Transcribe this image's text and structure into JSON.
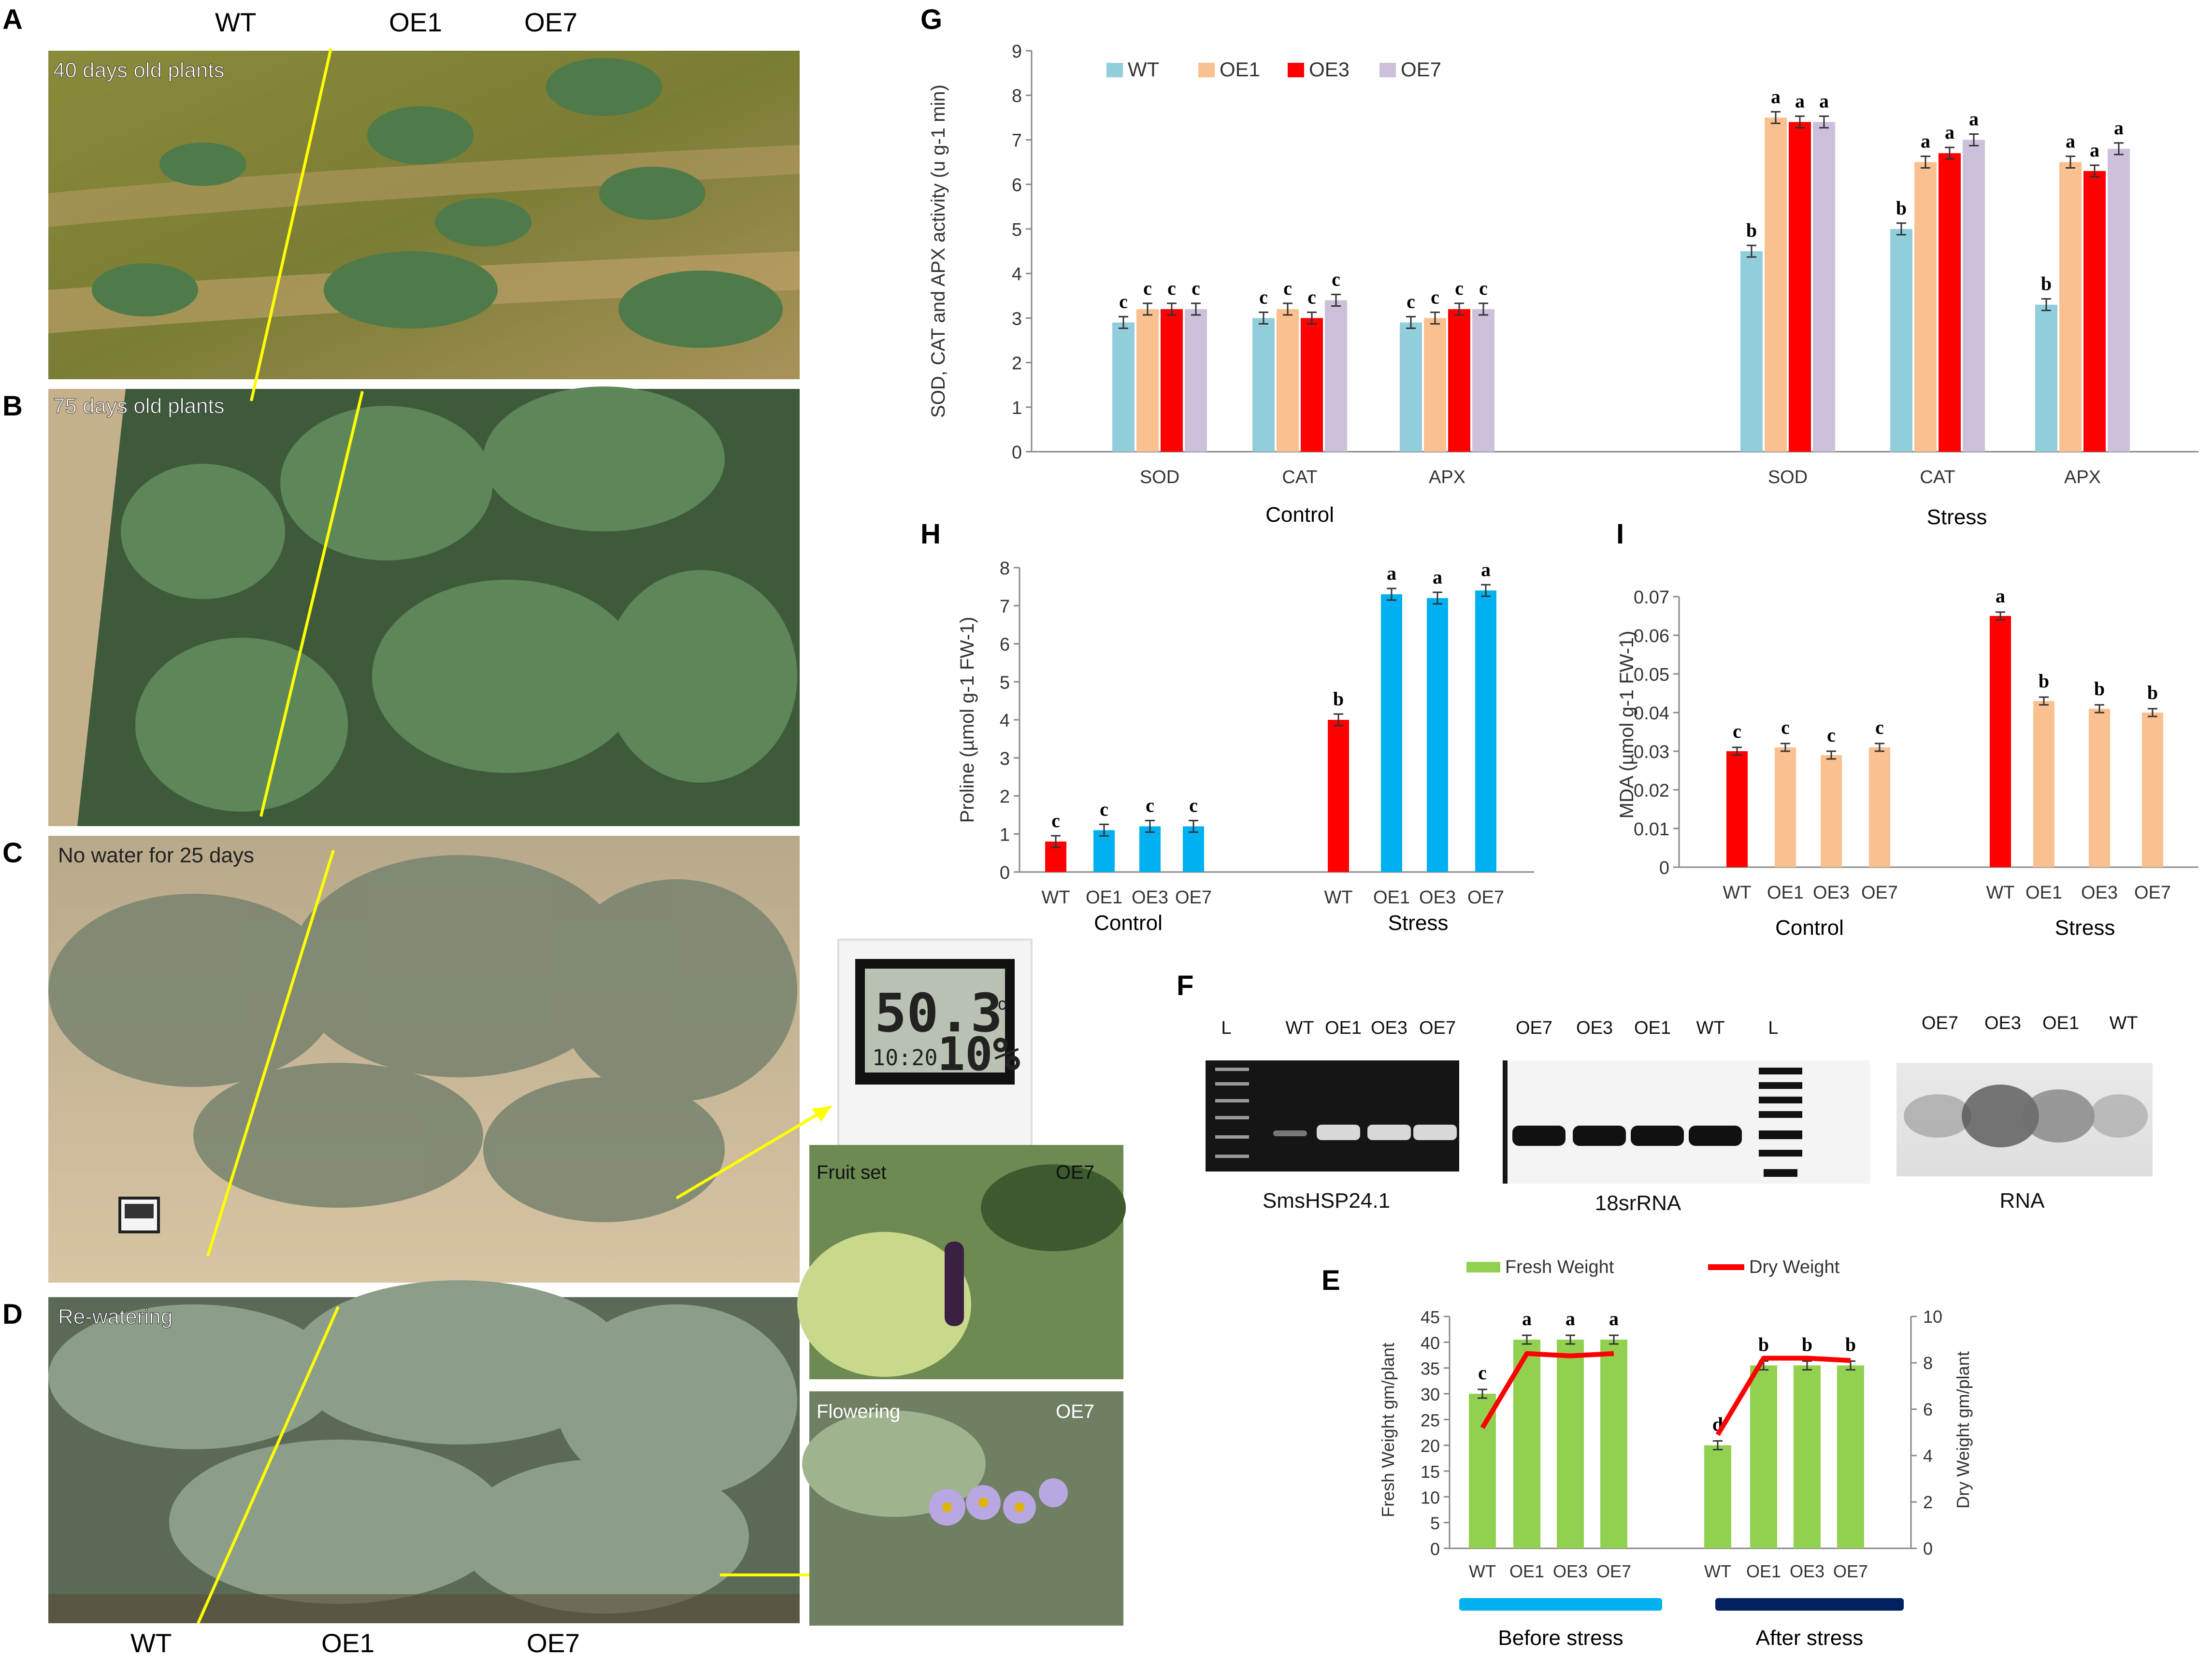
{
  "figure": {
    "panels": {
      "A": {
        "letter": "A",
        "caption": "40 days old plants"
      },
      "B": {
        "letter": "B",
        "caption": "75 days old plants"
      },
      "C": {
        "letter": "C",
        "caption": "No water for 25 days"
      },
      "D": {
        "letter": "D",
        "caption": "Re-watering"
      },
      "fruit": {
        "caption": "Fruit set",
        "tag": "OE7"
      },
      "flower": {
        "caption": "Flowering",
        "tag": "OE7"
      },
      "thermo": {
        "temp": "50.3",
        "unit": "c",
        "humidity": "10%",
        "time": "10:20"
      },
      "top_labels": [
        "WT",
        "OE1",
        "OE7"
      ],
      "bottom_labels": [
        "WT",
        "OE1",
        "OE7"
      ],
      "G": {
        "letter": "G"
      },
      "H": {
        "letter": "H"
      },
      "I": {
        "letter": "I"
      },
      "F": {
        "letter": "F"
      },
      "E": {
        "letter": "E"
      }
    },
    "colors": {
      "WT": "#92cddc",
      "OE1": "#fac090",
      "OE3": "#ff0000",
      "OE7": "#ccc0da",
      "blue": "#00b0f0",
      "green": "#92d050",
      "red_line": "#ff0000",
      "before_bar": "#00b0f0",
      "after_bar": "#002060"
    },
    "gels": {
      "gel1": {
        "lanes": [
          "L",
          "WT",
          "OE1",
          "OE3",
          "OE7"
        ],
        "title": "SmsHSP24.1"
      },
      "gel2": {
        "lanes": [
          "OE7",
          "OE3",
          "OE1",
          "WT",
          "L"
        ],
        "title": "18srRNA"
      },
      "gel3": {
        "lanes": [
          "OE7",
          "OE3",
          "OE1",
          "WT"
        ],
        "title": "RNA"
      }
    }
  },
  "chart_data": [
    {
      "id": "G",
      "type": "bar",
      "ylabel": "SOD, CAT and APX activity (u g-1 min)",
      "ylim": [
        0,
        9
      ],
      "yticks": [
        0,
        1,
        2,
        3,
        4,
        5,
        6,
        7,
        8,
        9
      ],
      "legend": [
        "WT",
        "OE1",
        "OE3",
        "OE7"
      ],
      "groups": [
        "Control",
        "Stress"
      ],
      "categories": [
        "SOD",
        "CAT",
        "APX",
        "SOD",
        "CAT",
        "APX"
      ],
      "series": [
        {
          "name": "WT",
          "values": [
            2.9,
            3.0,
            2.9,
            4.5,
            5.0,
            3.3
          ],
          "letters": [
            "c",
            "c",
            "c",
            "b",
            "b",
            "b"
          ]
        },
        {
          "name": "OE1",
          "values": [
            3.2,
            3.2,
            3.0,
            7.5,
            6.5,
            6.5
          ],
          "letters": [
            "c",
            "c",
            "c",
            "a",
            "a",
            "a"
          ]
        },
        {
          "name": "OE3",
          "values": [
            3.2,
            3.0,
            3.2,
            7.4,
            6.7,
            6.3
          ],
          "letters": [
            "c",
            "c",
            "c",
            "a",
            "a",
            "a"
          ]
        },
        {
          "name": "OE7",
          "values": [
            3.2,
            3.4,
            3.2,
            7.4,
            7.0,
            6.8
          ],
          "letters": [
            "c",
            "c",
            "c",
            "a",
            "a",
            "a"
          ]
        }
      ]
    },
    {
      "id": "H",
      "type": "bar",
      "ylabel": "Proline (µmol g-1 FW-1)",
      "ylim": [
        0,
        8
      ],
      "yticks": [
        0,
        1,
        2,
        3,
        4,
        5,
        6,
        7,
        8
      ],
      "groups": [
        "Control",
        "Stress"
      ],
      "categories": [
        "WT",
        "OE1",
        "OE3",
        "OE7",
        "WT",
        "OE1",
        "OE3",
        "OE7"
      ],
      "values": [
        0.8,
        1.1,
        1.2,
        1.2,
        4.0,
        7.3,
        7.2,
        7.4
      ],
      "letters": [
        "c",
        "c",
        "c",
        "c",
        "b",
        "a",
        "a",
        "a"
      ]
    },
    {
      "id": "I",
      "type": "bar",
      "ylabel": "MDA (µmol g-1 FW-1)",
      "ylim": [
        0,
        0.07
      ],
      "yticks": [
        "0",
        "0.01",
        "0.02",
        "0.03",
        "0.04",
        "0.05",
        "0.06",
        "0.07"
      ],
      "groups": [
        "Control",
        "Stress"
      ],
      "categories": [
        "WT",
        "OE1",
        "OE3",
        "OE7",
        "WT",
        "OE1",
        "OE3",
        "OE7"
      ],
      "values": [
        0.03,
        0.031,
        0.029,
        0.031,
        0.065,
        0.043,
        0.041,
        0.04
      ],
      "letters": [
        "c",
        "c",
        "c",
        "c",
        "a",
        "b",
        "b",
        "b"
      ]
    },
    {
      "id": "E",
      "type": "bar+line",
      "ylabel": "Fresh Weight gm/plant",
      "y2label": "Dry Weight gm/plant",
      "ylim": [
        0,
        45
      ],
      "yticks": [
        0,
        5,
        10,
        15,
        20,
        25,
        30,
        35,
        40,
        45
      ],
      "y2lim": [
        0,
        10
      ],
      "y2ticks": [
        0,
        2,
        4,
        6,
        8,
        10
      ],
      "legend": [
        "Fresh Weight",
        "Dry Weight"
      ],
      "groups": [
        "Before stress",
        "After stress"
      ],
      "categories": [
        "WT",
        "OE1",
        "OE3",
        "OE7",
        "WT",
        "OE1",
        "OE3",
        "OE7"
      ],
      "fresh": [
        30,
        40.5,
        40.5,
        40.5,
        20,
        35.5,
        35.5,
        35.5
      ],
      "dry": [
        5.2,
        8.4,
        8.3,
        8.4,
        4.9,
        8.2,
        8.2,
        8.1
      ],
      "letters": [
        "c",
        "a",
        "a",
        "a",
        "d",
        "b",
        "b",
        "b"
      ]
    }
  ]
}
